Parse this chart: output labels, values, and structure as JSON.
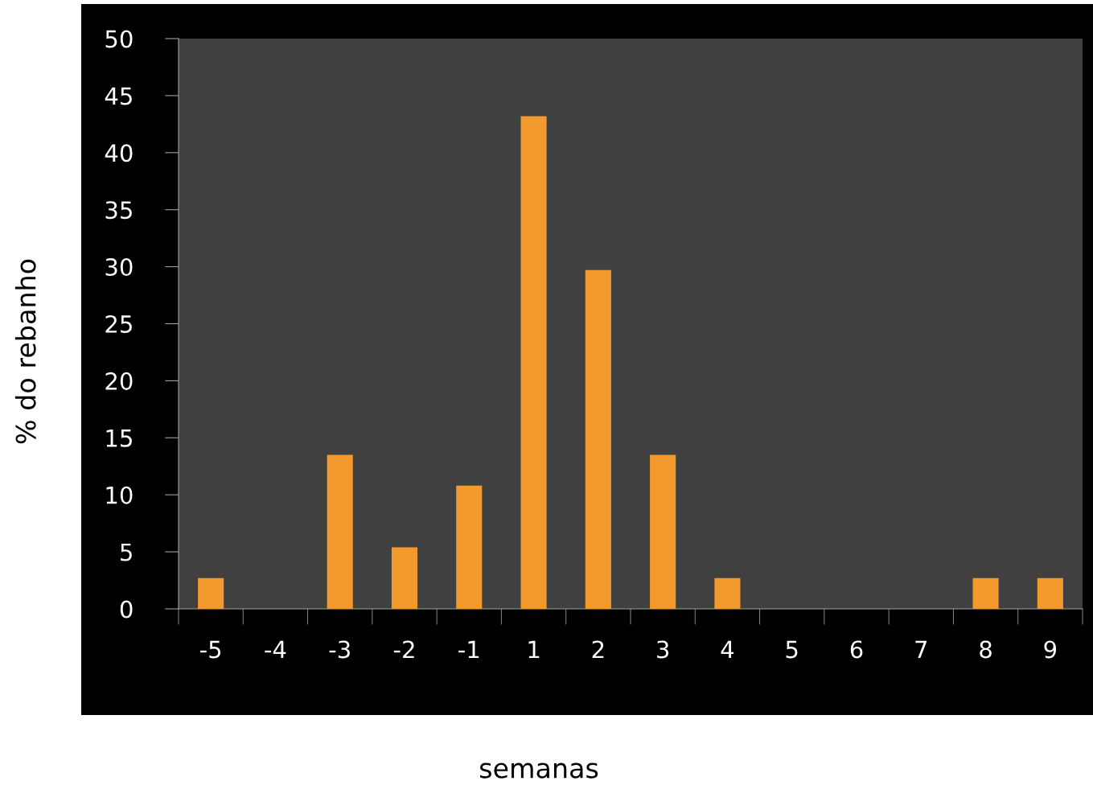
{
  "chart_data": {
    "type": "bar",
    "xlabel": "semanas",
    "ylabel": "% do rebanho",
    "categories": [
      "-5",
      "-4",
      "-3",
      "-2",
      "-1",
      "1",
      "2",
      "3",
      "4",
      "5",
      "6",
      "7",
      "8",
      "9"
    ],
    "values": [
      2.7,
      0,
      13.5,
      5.4,
      10.8,
      43.2,
      29.7,
      13.5,
      2.7,
      0,
      0,
      0,
      2.7,
      2.7
    ],
    "color": "#f39a2e",
    "ylim": [
      0,
      50
    ],
    "yticks": [
      0,
      5,
      10,
      15,
      20,
      25,
      30,
      35,
      40,
      45,
      50
    ],
    "grid": false,
    "legend": false
  }
}
